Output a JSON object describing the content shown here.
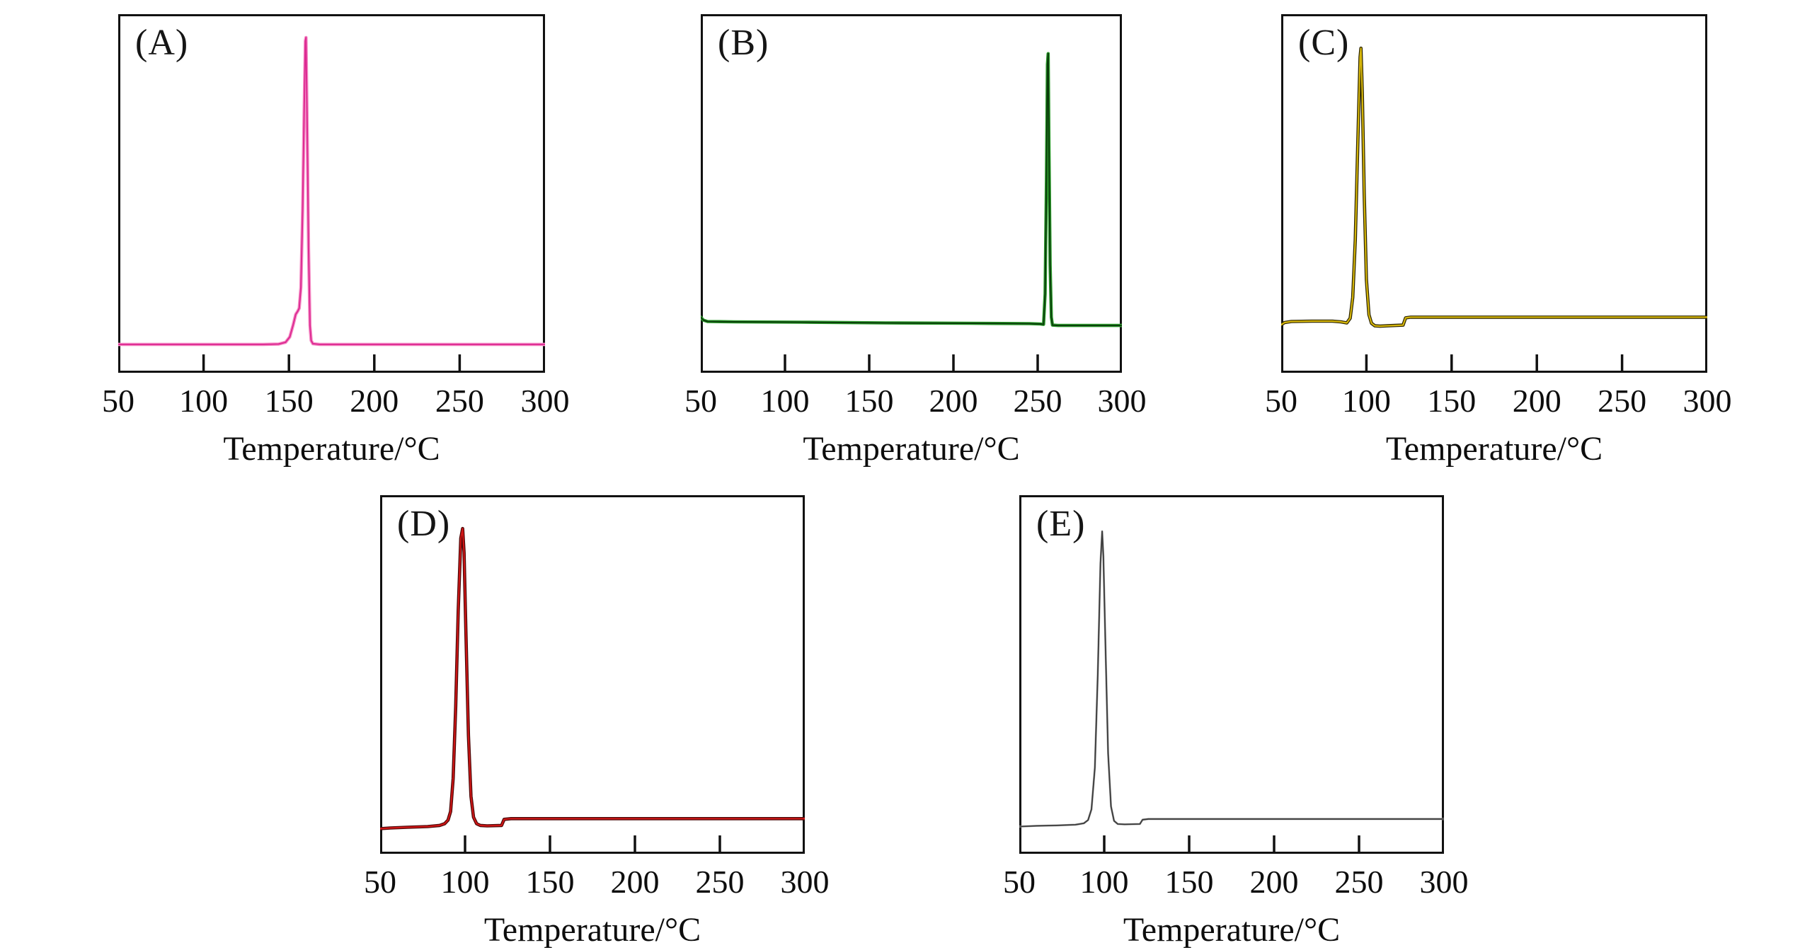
{
  "figure": {
    "background": "#ffffff",
    "frame_color": "#111111",
    "tick_color": "#111111"
  },
  "chart_data": [
    {
      "id": "A",
      "panel_label": "(A)",
      "type": "line",
      "xlabel": "Temperature/°C",
      "x_ticks": [
        50,
        100,
        150,
        200,
        250,
        300
      ],
      "xlim": [
        50,
        300
      ],
      "peak_temp_c": 160,
      "peak_shoulder_temp_c": 155,
      "line_color_edge": "#f58fc6",
      "line_color_core": "#dd2a92",
      "stroke_widths": [
        4.6,
        2.0
      ],
      "curve_points": [
        [
          50,
          0.921
        ],
        [
          95,
          0.921
        ],
        [
          135,
          0.921
        ],
        [
          144,
          0.92
        ],
        [
          148,
          0.915
        ],
        [
          150.5,
          0.9
        ],
        [
          152.5,
          0.866
        ],
        [
          154,
          0.837
        ],
        [
          155.2,
          0.828
        ],
        [
          156,
          0.82
        ],
        [
          157,
          0.762
        ],
        [
          158,
          0.55
        ],
        [
          158.9,
          0.27
        ],
        [
          159.6,
          0.075
        ],
        [
          160,
          0.065
        ],
        [
          160.7,
          0.32
        ],
        [
          161.5,
          0.65
        ],
        [
          162.3,
          0.868
        ],
        [
          163,
          0.91
        ],
        [
          164,
          0.919
        ],
        [
          168,
          0.921
        ],
        [
          230,
          0.921
        ],
        [
          300,
          0.921
        ]
      ]
    },
    {
      "id": "B",
      "panel_label": "(B)",
      "type": "line",
      "xlabel": "Temperature/°C",
      "x_ticks": [
        50,
        100,
        150,
        200,
        250,
        300
      ],
      "xlim": [
        50,
        300
      ],
      "peak_temp_c": 256,
      "line_color_edge": "#2c9a2c",
      "line_color_core": "#0a3d0a",
      "stroke_widths": [
        4.6,
        2.0
      ],
      "curve_points": [
        [
          50,
          0.845
        ],
        [
          51.5,
          0.853
        ],
        [
          54,
          0.857
        ],
        [
          70,
          0.858
        ],
        [
          110,
          0.859
        ],
        [
          160,
          0.861
        ],
        [
          210,
          0.862
        ],
        [
          245,
          0.863
        ],
        [
          251.5,
          0.864
        ],
        [
          253.5,
          0.865
        ],
        [
          254.4,
          0.78
        ],
        [
          255.2,
          0.46
        ],
        [
          255.8,
          0.14
        ],
        [
          256.2,
          0.11
        ],
        [
          256.7,
          0.36
        ],
        [
          257.4,
          0.7
        ],
        [
          258.1,
          0.845
        ],
        [
          258.8,
          0.867
        ],
        [
          262,
          0.868
        ],
        [
          300,
          0.868
        ]
      ]
    },
    {
      "id": "C",
      "panel_label": "(C)",
      "type": "line",
      "xlabel": "Temperature/°C",
      "x_ticks": [
        50,
        100,
        150,
        200,
        250,
        300
      ],
      "xlim": [
        50,
        300
      ],
      "peak_temp_c": 97,
      "baseline_step_temp_c": 123,
      "line_color_edge": "#2a2300",
      "line_color_core": "#d6b60a",
      "stroke_widths": [
        4.6,
        2.2
      ],
      "curve_points": [
        [
          50,
          0.866
        ],
        [
          52,
          0.86
        ],
        [
          56,
          0.857
        ],
        [
          68,
          0.856
        ],
        [
          80,
          0.856
        ],
        [
          85,
          0.858
        ],
        [
          88.5,
          0.861
        ],
        [
          90.5,
          0.848
        ],
        [
          92,
          0.79
        ],
        [
          93.5,
          0.63
        ],
        [
          95,
          0.35
        ],
        [
          96.3,
          0.12
        ],
        [
          96.8,
          0.095
        ],
        [
          97.6,
          0.22
        ],
        [
          98.7,
          0.5
        ],
        [
          100,
          0.74
        ],
        [
          101.5,
          0.838
        ],
        [
          103,
          0.862
        ],
        [
          105,
          0.869
        ],
        [
          108,
          0.87
        ],
        [
          112,
          0.869
        ],
        [
          121.5,
          0.867
        ],
        [
          123,
          0.847
        ],
        [
          126,
          0.845
        ],
        [
          160,
          0.845
        ],
        [
          230,
          0.845
        ],
        [
          300,
          0.845
        ]
      ]
    },
    {
      "id": "D",
      "panel_label": "(D)",
      "type": "line",
      "xlabel": "Temperature/°C",
      "x_ticks": [
        50,
        100,
        150,
        200,
        250,
        300
      ],
      "xlim": [
        50,
        300
      ],
      "peak_temp_c": 98,
      "baseline_step_temp_c": 123,
      "line_color_edge": "#4a0808",
      "line_color_core": "#cf1616",
      "stroke_widths": [
        4.6,
        2.2
      ],
      "curve_points": [
        [
          50,
          0.93
        ],
        [
          56,
          0.928
        ],
        [
          66,
          0.926
        ],
        [
          78,
          0.924
        ],
        [
          85,
          0.921
        ],
        [
          88,
          0.916
        ],
        [
          90,
          0.906
        ],
        [
          91.5,
          0.882
        ],
        [
          93,
          0.79
        ],
        [
          94.5,
          0.59
        ],
        [
          96,
          0.32
        ],
        [
          97.5,
          0.12
        ],
        [
          98.6,
          0.093
        ],
        [
          99.4,
          0.16
        ],
        [
          100.5,
          0.38
        ],
        [
          102,
          0.67
        ],
        [
          103.5,
          0.84
        ],
        [
          105,
          0.898
        ],
        [
          106.8,
          0.916
        ],
        [
          109,
          0.921
        ],
        [
          113,
          0.922
        ],
        [
          121.5,
          0.921
        ],
        [
          123,
          0.904
        ],
        [
          127,
          0.902
        ],
        [
          165,
          0.902
        ],
        [
          230,
          0.902
        ],
        [
          300,
          0.902
        ]
      ]
    },
    {
      "id": "E",
      "panel_label": "(E)",
      "type": "line",
      "xlabel": "Temperature/°C",
      "x_ticks": [
        50,
        100,
        150,
        200,
        250,
        300
      ],
      "xlim": [
        50,
        300
      ],
      "peak_temp_c": 99,
      "baseline_step_temp_c": 123,
      "line_color_edge": "#a0a0a0",
      "line_color_core": "#3c3c3c",
      "stroke_widths": [
        2.8,
        1.8
      ],
      "curve_points": [
        [
          50,
          0.924
        ],
        [
          60,
          0.922
        ],
        [
          72,
          0.921
        ],
        [
          83,
          0.919
        ],
        [
          88,
          0.915
        ],
        [
          90.5,
          0.906
        ],
        [
          92.5,
          0.876
        ],
        [
          94.5,
          0.76
        ],
        [
          96.2,
          0.5
        ],
        [
          97.8,
          0.19
        ],
        [
          98.8,
          0.101
        ],
        [
          99.5,
          0.17
        ],
        [
          100.8,
          0.43
        ],
        [
          102.3,
          0.72
        ],
        [
          104,
          0.868
        ],
        [
          105.8,
          0.908
        ],
        [
          108,
          0.917
        ],
        [
          112,
          0.918
        ],
        [
          121,
          0.917
        ],
        [
          122.6,
          0.905
        ],
        [
          126,
          0.903
        ],
        [
          170,
          0.903
        ],
        [
          240,
          0.903
        ],
        [
          300,
          0.903
        ]
      ]
    }
  ]
}
